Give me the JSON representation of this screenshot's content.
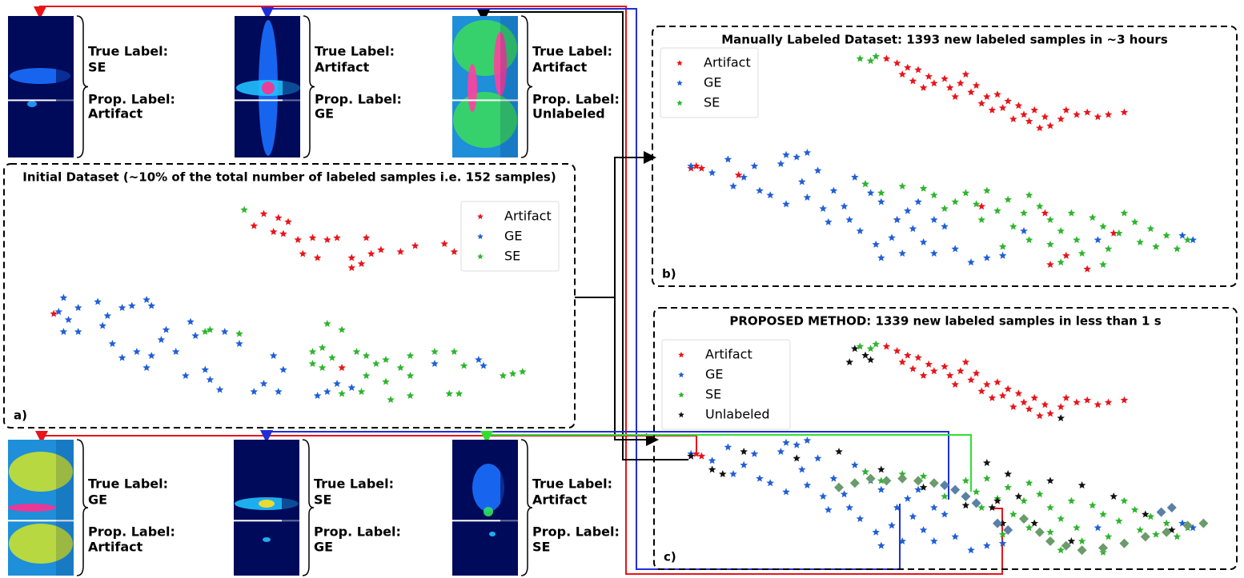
{
  "chart_data": [
    {
      "type": "scatter",
      "title": "Initial Dataset (~10% of the total number of labeled samples i.e. 152 samples)",
      "panel_label": "a)",
      "xlim": [
        0,
        100
      ],
      "ylim": [
        0,
        100
      ],
      "legend": "upper right",
      "series": [
        {
          "name": "Artifact",
          "color": "#e8141a",
          "marker": "star",
          "x": [
            45,
            48,
            50,
            43,
            47,
            49,
            52,
            55,
            58,
            60,
            53,
            56,
            63,
            65,
            67,
            69,
            73,
            76,
            66,
            63,
            82,
            84,
            2,
            61
          ],
          "y": [
            95,
            93,
            91,
            89,
            86,
            85,
            82,
            83,
            82,
            83,
            75,
            73,
            73,
            70,
            75,
            77,
            76,
            79,
            83,
            68,
            80,
            76,
            45,
            18
          ]
        },
        {
          "name": "GE",
          "color": "#1f5fd6",
          "marker": "star",
          "x": [
            3,
            4,
            7,
            5,
            4,
            7,
            11,
            13,
            16,
            18,
            21,
            22,
            12,
            14,
            16,
            19,
            21,
            22,
            24,
            25,
            27,
            30,
            31,
            29,
            34,
            36,
            33,
            37,
            40,
            43,
            45,
            47,
            49,
            48,
            56,
            58,
            60,
            63,
            90,
            89,
            80
          ],
          "y": [
            46,
            53,
            48,
            42,
            36,
            36,
            51,
            44,
            48,
            49,
            52,
            49,
            39,
            30,
            23,
            26,
            18,
            24,
            32,
            37,
            26,
            41,
            34,
            14,
            12,
            7,
            17,
            36,
            30,
            6,
            10,
            24,
            17,
            6,
            4,
            6,
            10,
            8,
            19,
            22,
            20
          ]
        },
        {
          "name": "SE",
          "color": "#2db52d",
          "marker": "star",
          "x": [
            41,
            33,
            34,
            40,
            55,
            57,
            59,
            61,
            55,
            57,
            64,
            66,
            68,
            70,
            66,
            70,
            73,
            75,
            75,
            80,
            84,
            86,
            94,
            96,
            98,
            83,
            85,
            75,
            71,
            65,
            61,
            58
          ],
          "y": [
            97,
            36,
            37,
            35,
            26,
            28,
            23,
            37,
            20,
            18,
            26,
            24,
            20,
            22,
            14,
            11,
            18,
            24,
            14,
            26,
            26,
            19,
            14,
            15,
            16,
            5,
            5,
            4,
            2,
            6,
            5,
            40
          ]
        }
      ]
    },
    {
      "type": "scatter",
      "title": "Manually Labeled Dataset: 1393 new labeled samples in ~3 hours",
      "panel_label": "b)",
      "xlim": [
        0,
        100
      ],
      "ylim": [
        0,
        100
      ],
      "legend": "upper left",
      "series": [
        {
          "name": "Artifact",
          "color": "#e8141a",
          "marker": "star",
          "x": [
            39,
            41,
            43,
            42,
            45,
            47,
            48,
            50,
            51,
            53,
            55,
            56,
            58,
            57,
            60,
            62,
            61,
            64,
            65,
            67,
            66,
            69,
            70,
            72,
            73,
            75,
            77,
            79,
            81,
            84,
            46,
            52,
            59,
            63,
            68,
            54,
            44,
            2,
            3,
            4,
            11,
            41,
            57,
            69,
            73,
            70,
            77,
            82
          ],
          "y": [
            97,
            95,
            93,
            90,
            92,
            89,
            86,
            88,
            84,
            86,
            82,
            85,
            80,
            77,
            81,
            78,
            75,
            76,
            72,
            74,
            69,
            71,
            67,
            70,
            74,
            72,
            73,
            71,
            72,
            73,
            84,
            80,
            74,
            70,
            66,
            90,
            87,
            48,
            49,
            48,
            45,
            25,
            31,
            28,
            9,
            5,
            3,
            19
          ]
        },
        {
          "name": "GE",
          "color": "#1f5fd6",
          "marker": "star",
          "x": [
            2,
            6,
            9,
            10,
            12,
            14,
            15,
            17,
            19,
            20,
            22,
            24,
            26,
            23,
            20,
            24,
            27,
            29,
            31,
            28,
            33,
            35,
            36,
            38,
            32,
            34,
            37,
            40,
            42,
            38,
            41,
            43,
            45,
            44,
            46,
            48,
            50,
            48,
            52,
            55,
            58,
            61,
            65,
            79,
            97,
            95
          ],
          "y": [
            49,
            46,
            52,
            40,
            44,
            49,
            38,
            36,
            50,
            54,
            53,
            55,
            47,
            42,
            32,
            35,
            30,
            38,
            31,
            24,
            44,
            41,
            37,
            33,
            25,
            20,
            14,
            17,
            10,
            8,
            25,
            29,
            33,
            21,
            15,
            25,
            22,
            10,
            12,
            6,
            8,
            9,
            20,
            16,
            16,
            18
          ]
        },
        {
          "name": "SE",
          "color": "#2db52d",
          "marker": "star",
          "x": [
            35,
            38,
            42,
            46,
            48,
            52,
            50,
            54,
            56,
            58,
            57,
            60,
            62,
            63,
            65,
            66,
            68,
            70,
            70,
            72,
            74,
            75,
            76,
            78,
            80,
            81,
            83,
            84,
            86,
            87,
            89,
            90,
            92,
            94,
            96,
            72,
            80,
            66,
            61,
            36,
            37,
            34
          ],
          "y": [
            41,
            37,
            40,
            39,
            36,
            33,
            30,
            37,
            32,
            38,
            25,
            29,
            34,
            22,
            28,
            16,
            31,
            25,
            14,
            20,
            28,
            16,
            10,
            26,
            22,
            12,
            19,
            28,
            24,
            15,
            21,
            13,
            18,
            12,
            16,
            6,
            5,
            36,
            13,
            96,
            98,
            97
          ]
        }
      ]
    },
    {
      "type": "scatter",
      "title": "PROPOSED METHOD: 1339 new labeled samples in less than 1 s",
      "panel_label": "c)",
      "xlim": [
        0,
        100
      ],
      "ylim": [
        0,
        100
      ],
      "legend": "upper left",
      "series": [
        {
          "name": "Artifact",
          "color": "#e8141a",
          "marker": "star",
          "x": [
            39,
            41,
            43,
            42,
            45,
            47,
            48,
            50,
            51,
            53,
            55,
            56,
            58,
            57,
            60,
            62,
            61,
            64,
            65,
            67,
            66,
            69,
            70,
            72,
            73,
            75,
            77,
            79,
            81,
            84,
            46,
            52,
            59,
            63,
            68,
            54,
            44,
            2,
            3,
            4
          ],
          "y": [
            97,
            95,
            93,
            90,
            92,
            89,
            86,
            88,
            84,
            86,
            82,
            85,
            80,
            77,
            81,
            78,
            75,
            76,
            72,
            74,
            69,
            71,
            67,
            70,
            74,
            72,
            73,
            71,
            72,
            73,
            84,
            80,
            74,
            70,
            66,
            90,
            87,
            48,
            49,
            48
          ]
        },
        {
          "name": "GE",
          "color": "#1f5fd6",
          "marker": "star",
          "x": [
            2,
            6,
            9,
            10,
            12,
            14,
            15,
            17,
            19,
            20,
            22,
            24,
            26,
            23,
            20,
            24,
            27,
            29,
            31,
            28,
            33,
            35,
            36,
            38,
            32,
            34,
            37,
            40,
            42,
            38,
            41,
            43,
            45,
            44,
            46,
            48,
            50,
            48,
            52,
            55,
            58,
            61,
            65,
            79,
            97,
            95
          ],
          "y": [
            49,
            46,
            52,
            40,
            44,
            49,
            38,
            36,
            50,
            54,
            53,
            55,
            47,
            42,
            32,
            35,
            30,
            38,
            31,
            24,
            44,
            41,
            37,
            33,
            25,
            20,
            14,
            17,
            10,
            8,
            25,
            29,
            33,
            21,
            15,
            25,
            22,
            10,
            12,
            6,
            8,
            9,
            20,
            16,
            16,
            18
          ]
        },
        {
          "name": "SE",
          "color": "#2db52d",
          "marker": "star",
          "x": [
            35,
            38,
            42,
            46,
            48,
            52,
            50,
            54,
            56,
            58,
            57,
            60,
            62,
            63,
            65,
            66,
            68,
            70,
            70,
            72,
            74,
            75,
            76,
            78,
            80,
            81,
            83,
            84,
            86,
            87,
            89,
            90,
            92,
            94,
            96,
            72,
            80,
            66,
            61,
            36,
            37,
            34
          ],
          "y": [
            41,
            37,
            40,
            39,
            36,
            33,
            30,
            37,
            32,
            38,
            25,
            29,
            34,
            22,
            28,
            16,
            31,
            25,
            14,
            20,
            28,
            16,
            10,
            26,
            22,
            12,
            19,
            28,
            24,
            15,
            21,
            13,
            18,
            12,
            16,
            6,
            5,
            36,
            13,
            96,
            98,
            97
          ]
        },
        {
          "name": "Unlabeled",
          "color": "#111111",
          "marker": "star",
          "x": [
            33,
            35,
            32,
            36,
            2,
            6,
            8,
            12,
            22,
            30,
            38,
            46,
            58,
            62,
            59,
            61,
            54,
            67,
            76,
            82,
            88,
            74,
            64,
            70,
            93,
            72,
            60
          ],
          "y": [
            96,
            93,
            90,
            91,
            48,
            42,
            40,
            50,
            47,
            50,
            42,
            34,
            45,
            40,
            25,
            18,
            26,
            18,
            35,
            30,
            22,
            10,
            30,
            37,
            15,
            65,
            28
          ]
        },
        {
          "color": "#6b9a6b",
          "marker": "diamond",
          "x": [
            30,
            33,
            36,
            39,
            42,
            45,
            48,
            65,
            68,
            70,
            73,
            76,
            80,
            84,
            88,
            92,
            96,
            99
          ],
          "y": [
            34,
            36,
            38,
            37,
            38,
            37,
            36,
            20,
            14,
            10,
            8,
            6,
            7,
            9,
            12,
            14,
            17,
            18
          ]
        },
        {
          "color": "#5b7fa6",
          "marker": "diamond",
          "x": [
            50,
            52,
            54,
            56,
            60,
            62,
            91,
            93
          ],
          "y": [
            35,
            33,
            30,
            27,
            18,
            15,
            23,
            25
          ]
        }
      ]
    }
  ],
  "images": [
    {
      "true_heading": "True Label:",
      "true_label": "SE",
      "prop_heading": "Prop. Label:",
      "prop_label": "Artifact"
    },
    {
      "true_heading": "True Label:",
      "true_label": "Artifact",
      "prop_heading": "Prop. Label:",
      "prop_label": "GE"
    },
    {
      "true_heading": "True Label:",
      "true_label": "Artifact",
      "prop_heading": "Prop. Label:",
      "prop_label": "Unlabeled"
    },
    {
      "true_heading": "True Label:",
      "true_label": "GE",
      "prop_heading": "Prop. Label:",
      "prop_label": "Artifact"
    },
    {
      "true_heading": "True Label:",
      "true_label": "SE",
      "prop_heading": "Prop. Label:",
      "prop_label": "GE"
    },
    {
      "true_heading": "True Label:",
      "true_label": "Artifact",
      "prop_heading": "Prop. Label:",
      "prop_label": "SE"
    }
  ]
}
